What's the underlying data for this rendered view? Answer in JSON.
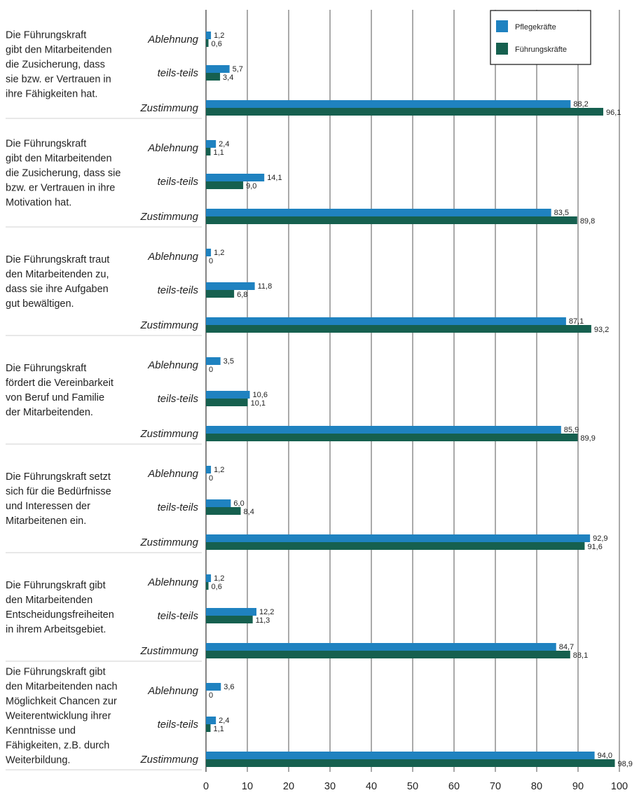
{
  "chart_data": {
    "type": "bar",
    "orientation": "horizontal",
    "xlim": [
      0,
      100
    ],
    "xticks": [
      "0",
      "10",
      "20",
      "30",
      "40",
      "50",
      "60",
      "70",
      "80",
      "90",
      "100"
    ],
    "grid": true,
    "legend_position": "top-right",
    "categories": [
      "Ablehnung",
      "teils-teils",
      "Zustimmung"
    ],
    "series": [
      {
        "name": "Pflegekräfte",
        "color": "#1f82c0"
      },
      {
        "name": "Führungskräfte",
        "color": "#16604f"
      }
    ],
    "groups": [
      {
        "question_lines": [
          "Die Führungskraft",
          "gibt den Mitarbeitenden",
          "die Zusicherung, dass",
          "sie bzw. er Vertrauen in",
          "ihre Fähigkeiten hat."
        ],
        "pflege": [
          1.2,
          5.7,
          88.2
        ],
        "pflege_labels": [
          "1,2",
          "5,7",
          "88,2"
        ],
        "fuehrung": [
          0.6,
          3.4,
          96.1
        ],
        "fuehrung_labels": [
          "0,6",
          "3,4",
          "96,1"
        ]
      },
      {
        "question_lines": [
          "Die Führungskraft",
          "gibt den Mitarbeitenden",
          "die Zusicherung, dass sie",
          "bzw. er Vertrauen in ihre",
          "Motivation hat."
        ],
        "pflege": [
          2.4,
          14.1,
          83.5
        ],
        "pflege_labels": [
          "2,4",
          "14,1",
          "83,5"
        ],
        "fuehrung": [
          1.1,
          9.0,
          89.8
        ],
        "fuehrung_labels": [
          "1,1",
          "9,0",
          "89,8"
        ]
      },
      {
        "question_lines": [
          "Die Führungskraft traut",
          "den Mitarbeitenden zu,",
          "dass sie ihre Aufgaben",
          "gut bewältigen."
        ],
        "pflege": [
          1.2,
          11.8,
          87.1
        ],
        "pflege_labels": [
          "1,2",
          "11,8",
          "87,1"
        ],
        "fuehrung": [
          0,
          6.8,
          93.2
        ],
        "fuehrung_labels": [
          "0",
          "6,8",
          "93,2"
        ]
      },
      {
        "question_lines": [
          "Die Führungskraft",
          "fördert die Vereinbarkeit",
          "von Beruf und Familie",
          "der Mitarbeitenden."
        ],
        "pflege": [
          3.5,
          10.6,
          85.9
        ],
        "pflege_labels": [
          "3,5",
          "10,6",
          "85,9"
        ],
        "fuehrung": [
          0,
          10.1,
          89.9
        ],
        "fuehrung_labels": [
          "0",
          "10,1",
          "89,9"
        ]
      },
      {
        "question_lines": [
          "Die Führungskraft setzt",
          "sich für die Bedürfnisse",
          "und Interessen der",
          "Mitarbeitenen ein."
        ],
        "pflege": [
          1.2,
          6.0,
          92.9
        ],
        "pflege_labels": [
          "1,2",
          "6,0",
          "92,9"
        ],
        "fuehrung": [
          0,
          8.4,
          91.6
        ],
        "fuehrung_labels": [
          "0",
          "8,4",
          "91,6"
        ]
      },
      {
        "question_lines": [
          "Die Führungskraft gibt",
          "den Mitarbeitenden",
          "Entscheidungsfreiheiten",
          "in ihrem Arbeitsgebiet."
        ],
        "pflege": [
          1.2,
          12.2,
          84.7
        ],
        "pflege_labels": [
          "1,2",
          "12,2",
          "84,7"
        ],
        "fuehrung": [
          0.6,
          11.3,
          88.1
        ],
        "fuehrung_labels": [
          "0,6",
          "11,3",
          "88,1"
        ]
      },
      {
        "question_lines": [
          "Die Führungskraft gibt",
          "den Mitarbeitenden nach",
          "Möglichkeit Chancen zur",
          "Weiterentwicklung ihrer",
          "Kenntnisse und",
          "Fähigkeiten, z.B. durch",
          "Weiterbildung."
        ],
        "pflege": [
          3.6,
          2.4,
          94.0
        ],
        "pflege_labels": [
          "3,6",
          "2,4",
          "94,0"
        ],
        "fuehrung": [
          0,
          1.1,
          98.9
        ],
        "fuehrung_labels": [
          "0",
          "1,1",
          "98,9"
        ]
      }
    ]
  }
}
